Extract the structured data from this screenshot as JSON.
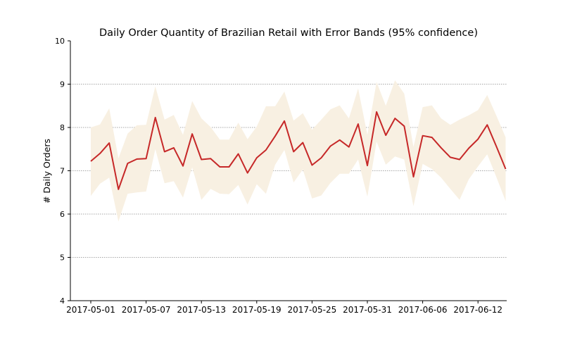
{
  "chart_data": {
    "type": "line",
    "title": "Daily Order Quantity of Brazilian Retail with Error Bands (95% confidence)",
    "xlabel": "",
    "ylabel": "# Daily Orders",
    "ylim": [
      4,
      10
    ],
    "yticks": [
      4,
      5,
      6,
      7,
      8,
      9,
      10
    ],
    "xticks": [
      "2017-05-01",
      "2017-05-07",
      "2017-05-13",
      "2017-05-19",
      "2017-05-25",
      "2017-05-31",
      "2017-06-06",
      "2017-06-12"
    ],
    "grid": "horizontal dotted",
    "colors": {
      "line": "#c62828",
      "band": "#f8f0e2"
    },
    "x": [
      "2017-05-01",
      "2017-05-02",
      "2017-05-03",
      "2017-05-04",
      "2017-05-05",
      "2017-05-06",
      "2017-05-07",
      "2017-05-08",
      "2017-05-09",
      "2017-05-10",
      "2017-05-11",
      "2017-05-12",
      "2017-05-13",
      "2017-05-14",
      "2017-05-15",
      "2017-05-16",
      "2017-05-17",
      "2017-05-18",
      "2017-05-19",
      "2017-05-20",
      "2017-05-21",
      "2017-05-22",
      "2017-05-23",
      "2017-05-24",
      "2017-05-25",
      "2017-05-26",
      "2017-05-27",
      "2017-05-28",
      "2017-05-29",
      "2017-05-30",
      "2017-05-31",
      "2017-06-01",
      "2017-06-02",
      "2017-06-03",
      "2017-06-04",
      "2017-06-05",
      "2017-06-06",
      "2017-06-07",
      "2017-06-08",
      "2017-06-09",
      "2017-06-10",
      "2017-06-11",
      "2017-06-12",
      "2017-06-13",
      "2017-06-14",
      "2017-06-15"
    ],
    "series": [
      {
        "values": [
          7.22,
          7.4,
          7.64,
          6.57,
          7.17,
          7.27,
          7.28,
          8.23,
          7.44,
          7.53,
          7.11,
          7.85,
          7.26,
          7.28,
          7.09,
          7.09,
          7.39,
          6.95,
          7.3,
          7.48,
          7.8,
          8.15,
          7.44,
          7.65,
          7.13,
          7.3,
          7.57,
          7.71,
          7.55,
          8.08,
          7.12,
          8.36,
          7.82,
          8.21,
          8.03,
          6.86,
          7.81,
          7.77,
          7.53,
          7.31,
          7.26,
          7.52,
          7.73,
          8.06,
          7.56,
          7.04
        ],
        "lower": [
          6.42,
          6.7,
          6.84,
          5.83,
          6.47,
          6.5,
          6.52,
          7.5,
          6.71,
          6.76,
          6.38,
          7.08,
          6.33,
          6.58,
          6.47,
          6.46,
          6.67,
          6.22,
          6.69,
          6.47,
          7.14,
          7.48,
          6.73,
          7.03,
          6.36,
          6.43,
          6.72,
          6.93,
          6.93,
          7.26,
          6.4,
          7.67,
          7.14,
          7.33,
          7.26,
          6.18,
          7.16,
          7.04,
          6.84,
          6.58,
          6.33,
          6.8,
          7.1,
          7.38,
          6.85,
          6.3
        ],
        "upper": [
          8.0,
          8.07,
          8.44,
          7.29,
          7.86,
          8.05,
          8.06,
          8.95,
          8.18,
          8.29,
          7.83,
          8.61,
          8.21,
          8.01,
          7.72,
          7.72,
          8.11,
          7.73,
          8.02,
          8.49,
          8.49,
          8.83,
          8.16,
          8.33,
          7.95,
          8.18,
          8.42,
          8.51,
          8.21,
          8.9,
          7.83,
          9.05,
          8.5,
          9.09,
          8.78,
          7.55,
          8.47,
          8.51,
          8.21,
          8.06,
          8.18,
          8.28,
          8.4,
          8.75,
          8.27,
          7.77
        ]
      }
    ]
  }
}
